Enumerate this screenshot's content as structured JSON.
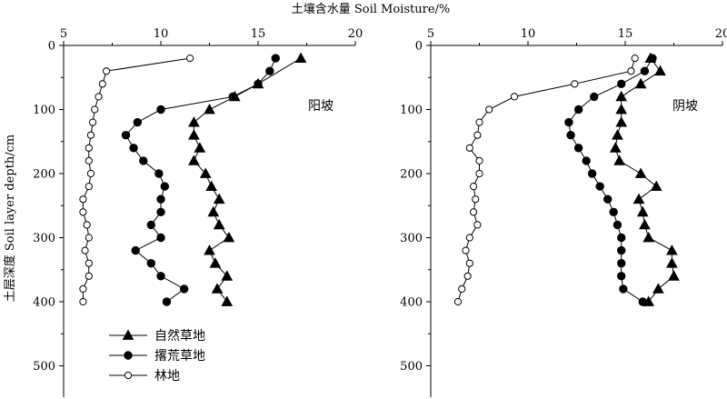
{
  "figure": {
    "x_axis_title": "土壤含水量 Soil Moisture/%",
    "y_axis_title": "土层深度 Soil layer depth/cm"
  },
  "legend": {
    "items": [
      {
        "label": "自然草地",
        "marker": "triangle-filled"
      },
      {
        "label": "撂荒草地",
        "marker": "circle-filled"
      },
      {
        "label": "林地",
        "marker": "circle-open"
      }
    ]
  },
  "chart_data": [
    {
      "type": "line",
      "panel_label": "阳坡",
      "xlabel": "土壤含水量 Soil Moisture/%",
      "ylabel": "土层深度 Soil layer depth/cm",
      "xlim": [
        5,
        20
      ],
      "ylim": [
        0,
        550
      ],
      "y_inverted": true,
      "x_axis_position": "top",
      "x_ticks": [
        5,
        10,
        15,
        20
      ],
      "y_ticks": [
        0,
        100,
        200,
        300,
        400,
        500
      ],
      "series": [
        {
          "name": "自然草地",
          "marker": "triangle-filled",
          "points": [
            [
              17.2,
              20
            ],
            [
              15,
              60
            ],
            [
              13.8,
              80
            ],
            [
              12.5,
              100
            ],
            [
              11.7,
              120
            ],
            [
              11.7,
              140
            ],
            [
              12,
              160
            ],
            [
              11.7,
              180
            ],
            [
              12.3,
              200
            ],
            [
              12.6,
              220
            ],
            [
              13,
              240
            ],
            [
              12.7,
              260
            ],
            [
              13,
              280
            ],
            [
              13.5,
              300
            ],
            [
              12.5,
              320
            ],
            [
              12.8,
              340
            ],
            [
              13.4,
              360
            ],
            [
              12.9,
              380
            ],
            [
              13.4,
              400
            ]
          ]
        },
        {
          "name": "撂荒草地",
          "marker": "circle-filled",
          "points": [
            [
              15.9,
              20
            ],
            [
              15.6,
              40
            ],
            [
              15,
              60
            ],
            [
              13.7,
              80
            ],
            [
              10,
              100
            ],
            [
              8.8,
              120
            ],
            [
              8.2,
              140
            ],
            [
              8.6,
              160
            ],
            [
              9.1,
              180
            ],
            [
              9.9,
              200
            ],
            [
              10.2,
              220
            ],
            [
              10,
              240
            ],
            [
              10,
              260
            ],
            [
              9.5,
              280
            ],
            [
              10,
              300
            ],
            [
              8.7,
              320
            ],
            [
              9.5,
              340
            ],
            [
              10,
              360
            ],
            [
              11.2,
              380
            ],
            [
              10.3,
              400
            ]
          ]
        },
        {
          "name": "林地",
          "marker": "circle-open",
          "points": [
            [
              11.5,
              20
            ],
            [
              7.2,
              40
            ],
            [
              7,
              60
            ],
            [
              6.8,
              80
            ],
            [
              6.6,
              100
            ],
            [
              6.5,
              120
            ],
            [
              6.4,
              140
            ],
            [
              6.3,
              160
            ],
            [
              6.3,
              180
            ],
            [
              6.4,
              200
            ],
            [
              6.3,
              220
            ],
            [
              6,
              240
            ],
            [
              6,
              260
            ],
            [
              6.2,
              280
            ],
            [
              6.3,
              300
            ],
            [
              6.1,
              320
            ],
            [
              6.3,
              340
            ],
            [
              6.3,
              360
            ],
            [
              6,
              380
            ],
            [
              6,
              400
            ]
          ]
        }
      ]
    },
    {
      "type": "line",
      "panel_label": "阴坡",
      "xlabel": "土壤含水量 Soil Moisture/%",
      "ylabel": "",
      "xlim": [
        5,
        20
      ],
      "ylim": [
        0,
        550
      ],
      "y_inverted": true,
      "x_axis_position": "top",
      "x_ticks": [
        5,
        10,
        15,
        20
      ],
      "y_ticks": [
        0,
        100,
        200,
        300,
        400,
        500
      ],
      "series": [
        {
          "name": "自然草地",
          "marker": "triangle-filled",
          "points": [
            [
              16.3,
              20
            ],
            [
              16.8,
              40
            ],
            [
              15.8,
              60
            ],
            [
              14.8,
              80
            ],
            [
              14.8,
              100
            ],
            [
              14.8,
              120
            ],
            [
              14.6,
              140
            ],
            [
              14.5,
              160
            ],
            [
              14.7,
              180
            ],
            [
              15.8,
              200
            ],
            [
              16.6,
              220
            ],
            [
              15.7,
              240
            ],
            [
              15.9,
              260
            ],
            [
              16,
              280
            ],
            [
              16.2,
              300
            ],
            [
              17.4,
              320
            ],
            [
              17.4,
              340
            ],
            [
              17.5,
              360
            ],
            [
              16.7,
              380
            ],
            [
              16.2,
              400
            ]
          ]
        },
        {
          "name": "撂荒草地",
          "marker": "circle-filled",
          "points": [
            [
              16.4,
              20
            ],
            [
              16,
              40
            ],
            [
              14.8,
              60
            ],
            [
              13.4,
              80
            ],
            [
              12.6,
              100
            ],
            [
              12.1,
              120
            ],
            [
              12.2,
              140
            ],
            [
              12.6,
              160
            ],
            [
              13,
              180
            ],
            [
              13.3,
              200
            ],
            [
              13.7,
              220
            ],
            [
              14.1,
              240
            ],
            [
              14.4,
              260
            ],
            [
              14.6,
              280
            ],
            [
              14.8,
              300
            ],
            [
              14.8,
              320
            ],
            [
              14.8,
              340
            ],
            [
              14.8,
              360
            ],
            [
              14.9,
              380
            ],
            [
              15.9,
              400
            ]
          ]
        },
        {
          "name": "林地",
          "marker": "circle-open",
          "points": [
            [
              15.5,
              20
            ],
            [
              15.3,
              40
            ],
            [
              12.4,
              60
            ],
            [
              9.3,
              80
            ],
            [
              8,
              100
            ],
            [
              7.5,
              120
            ],
            [
              7.4,
              140
            ],
            [
              7,
              160
            ],
            [
              7.5,
              180
            ],
            [
              7.5,
              200
            ],
            [
              7.2,
              220
            ],
            [
              7.3,
              240
            ],
            [
              7.2,
              260
            ],
            [
              7.4,
              280
            ],
            [
              7,
              300
            ],
            [
              6.8,
              320
            ],
            [
              7,
              340
            ],
            [
              6.9,
              360
            ],
            [
              6.6,
              380
            ],
            [
              6.4,
              400
            ]
          ]
        }
      ]
    }
  ]
}
